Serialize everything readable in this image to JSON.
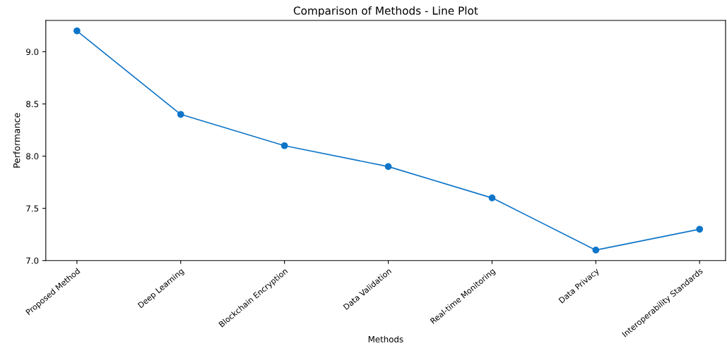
{
  "chart_data": {
    "type": "line",
    "title": "Comparison of Methods - Line Plot",
    "xlabel": "Methods",
    "ylabel": "Performance",
    "categories": [
      "Proposed Method",
      "Deep Learning",
      "Blockchain Encryption",
      "Data Validation",
      "Real-time Monitoring",
      "Data Privacy",
      "Interoperability Standards"
    ],
    "series": [
      {
        "color": "#0e75c8",
        "values": [
          9.2,
          8.4,
          8.1,
          7.9,
          7.6,
          7.1,
          7.3
        ]
      }
    ],
    "ylim": [
      7.0,
      9.3
    ],
    "yticks": [
      {
        "value": 7.0,
        "label": "7.0"
      },
      {
        "value": 7.5,
        "label": "7.5"
      },
      {
        "value": 8.0,
        "label": "8.0"
      },
      {
        "value": 8.5,
        "label": "8.5"
      },
      {
        "value": 9.0,
        "label": "9.0"
      }
    ],
    "marker": "circle",
    "line_style": "solid",
    "grid": false
  }
}
